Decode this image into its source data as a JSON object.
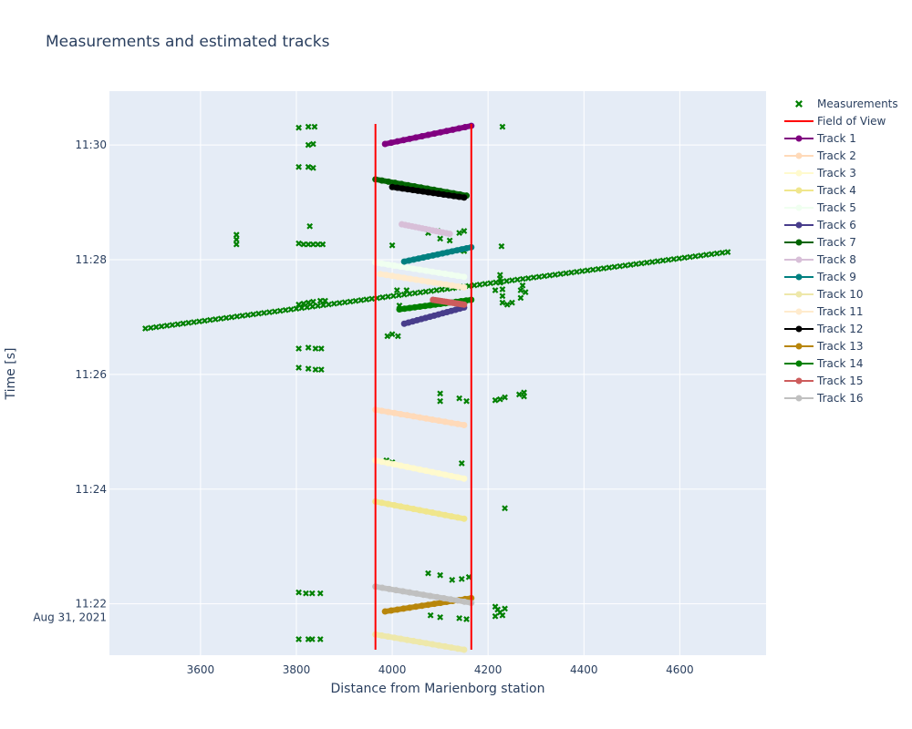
{
  "chart_data": {
    "type": "scatter",
    "title": "Measurements and estimated tracks",
    "xlabel": "Distance from Marienborg station",
    "ylabel": "Time [s]",
    "xlim": [
      3410,
      4780
    ],
    "ylim": [
      1266.3,
      1856.3
    ],
    "x_ticks": [
      3600,
      3800,
      4000,
      4200,
      4400,
      4600
    ],
    "y_ticks": [
      {
        "value": 1320,
        "label": "11:22",
        "sublabel": "Aug 31, 2021"
      },
      {
        "value": 1440,
        "label": "11:24",
        "sublabel": ""
      },
      {
        "value": 1560,
        "label": "11:26",
        "sublabel": ""
      },
      {
        "value": 1680,
        "label": "11:28",
        "sublabel": ""
      },
      {
        "value": 1800,
        "label": "11:30",
        "sublabel": ""
      }
    ],
    "grid": true,
    "legend_position": "right",
    "field_of_view": {
      "name": "Field of View",
      "color": "#ff0000",
      "x": [
        3965,
        4165
      ],
      "y": [
        1272,
        1822
      ]
    },
    "measurements": {
      "name": "Measurements",
      "color": "#008000",
      "points": [
        [
          3805,
          1818
        ],
        [
          3825,
          1819
        ],
        [
          3838,
          1819
        ],
        [
          4230,
          1819
        ],
        [
          3825,
          1800
        ],
        [
          3835,
          1801
        ],
        [
          3805,
          1777
        ],
        [
          3825,
          1777
        ],
        [
          3835,
          1776
        ],
        [
          3675,
          1706
        ],
        [
          3675,
          1701
        ],
        [
          3675,
          1696
        ],
        [
          3828,
          1715
        ],
        [
          3805,
          1697
        ],
        [
          3815,
          1696
        ],
        [
          3825,
          1696
        ],
        [
          3835,
          1696
        ],
        [
          3845,
          1696
        ],
        [
          3855,
          1696
        ],
        [
          3805,
          1633
        ],
        [
          3815,
          1634
        ],
        [
          3825,
          1635
        ],
        [
          3835,
          1636
        ],
        [
          3850,
          1637
        ],
        [
          3860,
          1637
        ],
        [
          3805,
          1587
        ],
        [
          3825,
          1588
        ],
        [
          3840,
          1587
        ],
        [
          3852,
          1587
        ],
        [
          3805,
          1567
        ],
        [
          3825,
          1566
        ],
        [
          3840,
          1565
        ],
        [
          3852,
          1565
        ],
        [
          4230,
          1649
        ],
        [
          4225,
          1656
        ],
        [
          4225,
          1660
        ],
        [
          4225,
          1664
        ],
        [
          4230,
          1642
        ],
        [
          4230,
          1635
        ],
        [
          4240,
          1633
        ],
        [
          4250,
          1635
        ],
        [
          4268,
          1640
        ],
        [
          4268,
          1648
        ],
        [
          4272,
          1653
        ],
        [
          4278,
          1646
        ],
        [
          4228,
          1694
        ],
        [
          4215,
          1648
        ],
        [
          4000,
          1695
        ],
        [
          4075,
          1708
        ],
        [
          4095,
          1710
        ],
        [
          4100,
          1702
        ],
        [
          4150,
          1710
        ],
        [
          4140,
          1708
        ],
        [
          4120,
          1700
        ],
        [
          4140,
          1690
        ],
        [
          4150,
          1689
        ],
        [
          4015,
          1632
        ],
        [
          4010,
          1648
        ],
        [
          4030,
          1648
        ],
        [
          3990,
          1600
        ],
        [
          4000,
          1602
        ],
        [
          4012,
          1600
        ],
        [
          4100,
          1540
        ],
        [
          4100,
          1532
        ],
        [
          4140,
          1535
        ],
        [
          4155,
          1532
        ],
        [
          4215,
          1533
        ],
        [
          4225,
          1534
        ],
        [
          4235,
          1536
        ],
        [
          4265,
          1539
        ],
        [
          4275,
          1541
        ],
        [
          4275,
          1537
        ],
        [
          3988,
          1470
        ],
        [
          4000,
          1468
        ],
        [
          4145,
          1467
        ],
        [
          4235,
          1420
        ],
        [
          4075,
          1352
        ],
        [
          4100,
          1350
        ],
        [
          4125,
          1345
        ],
        [
          4145,
          1346
        ],
        [
          4160,
          1348
        ],
        [
          4080,
          1308
        ],
        [
          4100,
          1306
        ],
        [
          4140,
          1305
        ],
        [
          4155,
          1304
        ],
        [
          4215,
          1317
        ],
        [
          4220,
          1314
        ],
        [
          4225,
          1311
        ],
        [
          4230,
          1308
        ],
        [
          4235,
          1315
        ],
        [
          4215,
          1307
        ],
        [
          3805,
          1332
        ],
        [
          3820,
          1331
        ],
        [
          3833,
          1331
        ],
        [
          3850,
          1331
        ],
        [
          3805,
          1283
        ],
        [
          3825,
          1283
        ],
        [
          3833,
          1283
        ],
        [
          3850,
          1283
        ]
      ],
      "line": [
        [
          3485,
          1608
        ],
        [
          4700,
          1688
        ]
      ]
    },
    "series": [
      {
        "name": "Track 1",
        "color": "#800080",
        "x": [
          3985,
          4165
        ],
        "y": [
          1801,
          1820
        ]
      },
      {
        "name": "Track 2",
        "color": "#ffdab9",
        "x": [
          3965,
          4150
        ],
        "y": [
          1523,
          1507
        ]
      },
      {
        "name": "Track 3",
        "color": "#fffacd",
        "x": [
          3965,
          4150
        ],
        "y": [
          1470,
          1451
        ]
      },
      {
        "name": "Track 4",
        "color": "#f0e68c",
        "x": [
          3965,
          4150
        ],
        "y": [
          1427,
          1409
        ]
      },
      {
        "name": "Track 5",
        "color": "#f0fff0",
        "x": [
          3965,
          4150
        ],
        "y": [
          1677,
          1662
        ]
      },
      {
        "name": "Track 6",
        "color": "#483d8b",
        "x": [
          4025,
          4150
        ],
        "y": [
          1613,
          1630
        ]
      },
      {
        "name": "Track 7",
        "color": "#006400",
        "x": [
          3965,
          4155
        ],
        "y": [
          1764,
          1747
        ]
      },
      {
        "name": "Track 8",
        "color": "#d8bfd8",
        "x": [
          4020,
          4120
        ],
        "y": [
          1717,
          1707
        ]
      },
      {
        "name": "Track 9",
        "color": "#008080",
        "x": [
          4025,
          4165
        ],
        "y": [
          1678,
          1693
        ]
      },
      {
        "name": "Track 10",
        "color": "#eee8aa",
        "x": [
          3965,
          4150
        ],
        "y": [
          1288,
          1272
        ]
      },
      {
        "name": "Track 11",
        "color": "#ffebcd",
        "x": [
          3975,
          4150
        ],
        "y": [
          1665,
          1651
        ]
      },
      {
        "name": "Track 12",
        "color": "#000000",
        "x": [
          4000,
          4150
        ],
        "y": [
          1756,
          1745
        ]
      },
      {
        "name": "Track 13",
        "color": "#b8860b",
        "x": [
          3985,
          4165
        ],
        "y": [
          1312,
          1326
        ]
      },
      {
        "name": "Track 14",
        "color": "#008000",
        "x": [
          4015,
          4165
        ],
        "y": [
          1628,
          1638
        ]
      },
      {
        "name": "Track 15",
        "color": "#cd5c5c",
        "x": [
          4085,
          4150
        ],
        "y": [
          1638,
          1633
        ]
      },
      {
        "name": "Track 16",
        "color": "#c0c0c0",
        "x": [
          3965,
          4165
        ],
        "y": [
          1338,
          1321
        ]
      }
    ]
  }
}
